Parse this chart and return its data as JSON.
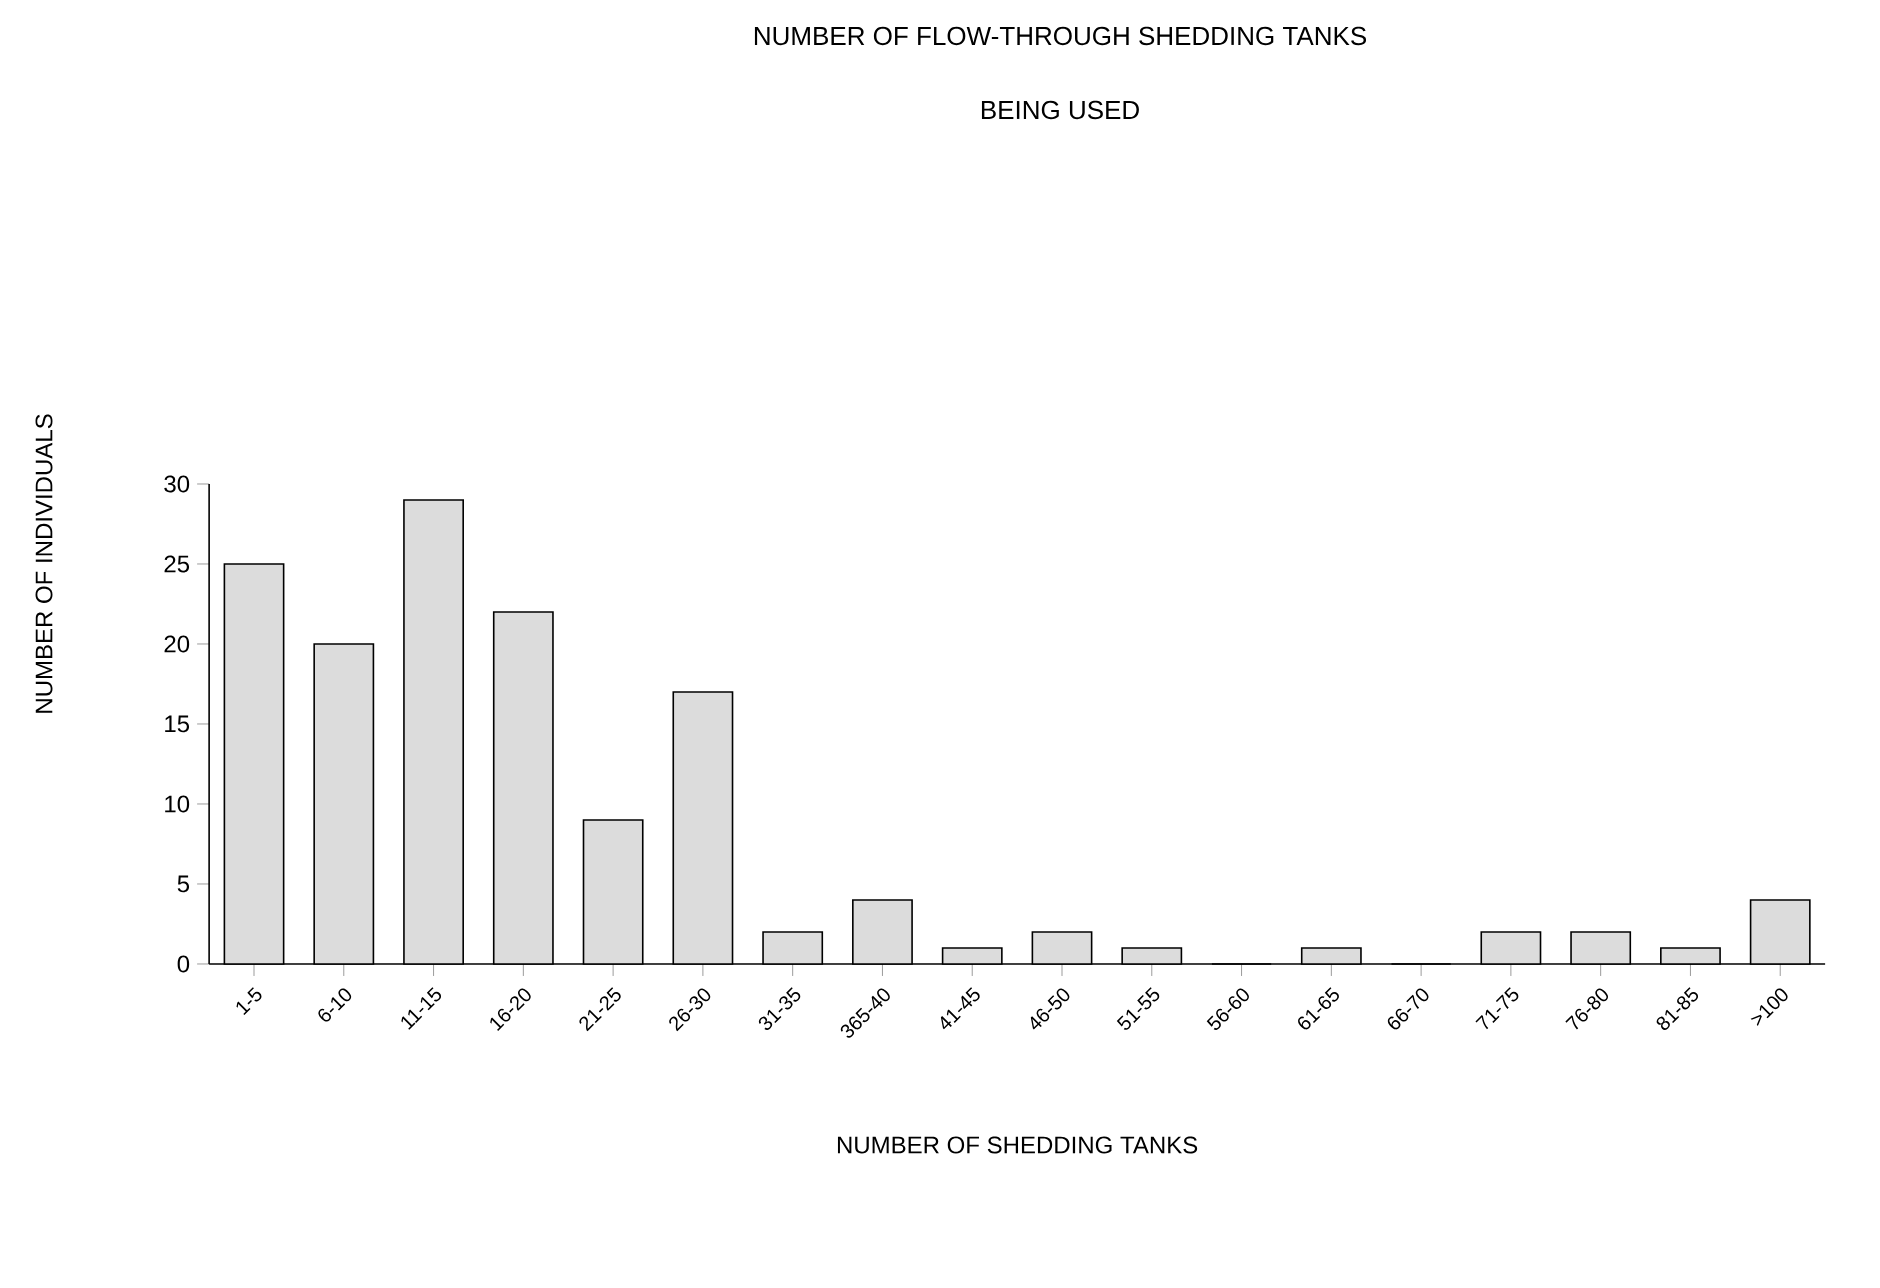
{
  "chart_data": {
    "type": "bar",
    "title": "NUMBER OF FLOW-THROUGH SHEDDING TANKS",
    "subtitle": "BEING USED",
    "xlabel": "NUMBER OF SHEDDING TANKS",
    "ylabel": "NUMBER OF INDIVIDUALS",
    "categories": [
      "1-5",
      "6-10",
      "11-15",
      "16-20",
      "21-25",
      "26-30",
      "31-35",
      "365-40",
      "41-45",
      "46-50",
      "51-55",
      "56-60",
      "61-65",
      "66-70",
      "71-75",
      "76-80",
      "81-85",
      ">100"
    ],
    "values": [
      25,
      20,
      29,
      22,
      9,
      17,
      2,
      4,
      1,
      2,
      1,
      0,
      1,
      0,
      2,
      2,
      1,
      4
    ],
    "color": "#dcdcdc",
    "ylim": [
      0,
      30
    ],
    "yticks": [
      0,
      5,
      10,
      15,
      20,
      25,
      30
    ]
  }
}
